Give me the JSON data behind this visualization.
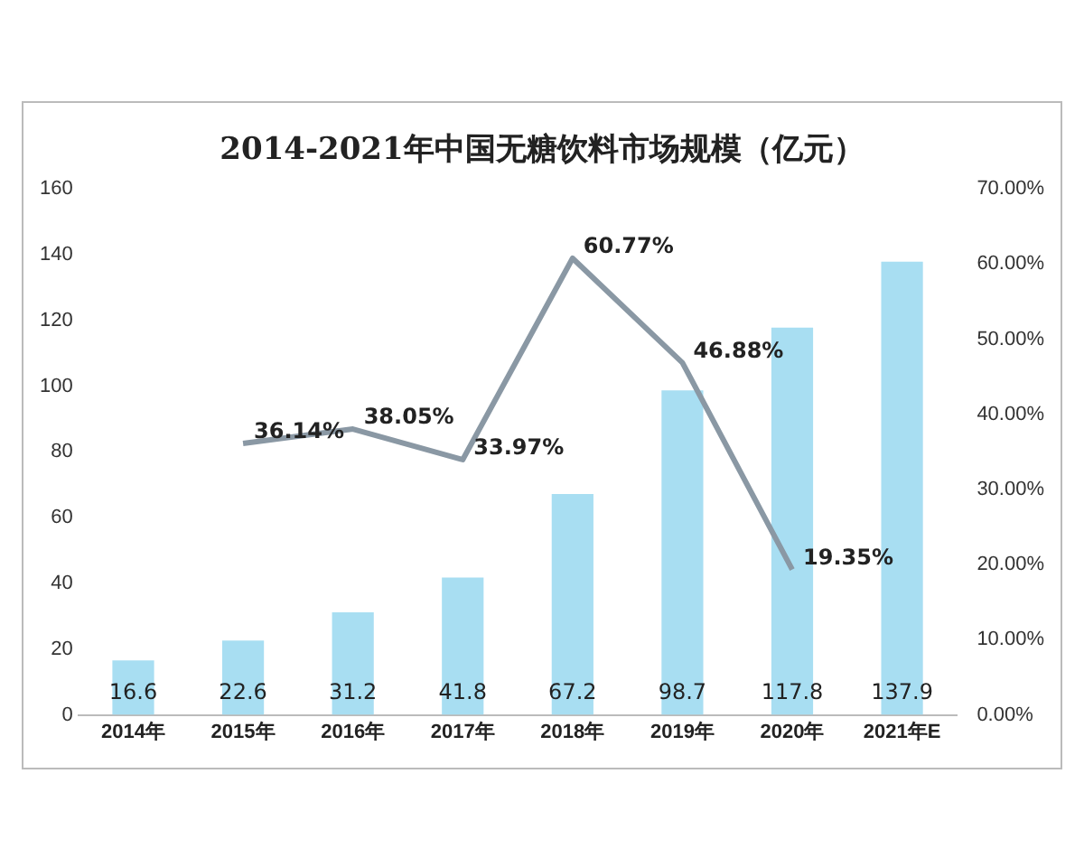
{
  "chart_data": {
    "type": "bar",
    "title": "2014-2021年中国无糖饮料市场规模（亿元）",
    "categories": [
      "2014年",
      "2015年",
      "2016年",
      "2017年",
      "2018年",
      "2019年",
      "2020年",
      "2021年E"
    ],
    "series": [
      {
        "color": "#a8def2",
        "values": [
          16.6,
          22.6,
          31.2,
          41.8,
          67.2,
          98.7,
          117.8,
          137.9
        ],
        "value_labels": [
          "16.6",
          "22.6",
          "31.2",
          "41.8",
          "67.2",
          "98.7",
          "117.8",
          "137.9"
        ]
      },
      {
        "type": "line",
        "axis": "y2",
        "color": "#8a98a4",
        "values": [
          null,
          36.14,
          38.05,
          33.97,
          60.77,
          46.88,
          19.35,
          null
        ],
        "value_labels": [
          null,
          "36.14%",
          "38.05%",
          "33.97%",
          "60.77%",
          "46.88%",
          "19.35%",
          null
        ]
      }
    ],
    "ylim": [
      0,
      160
    ],
    "yticks": [
      0,
      20,
      40,
      60,
      80,
      100,
      120,
      140,
      160
    ],
    "y2lim": [
      0,
      70
    ],
    "y2ticks": [
      {
        "value": 0,
        "label": "0.00%"
      },
      {
        "value": 10,
        "label": "10.00%"
      },
      {
        "value": 20,
        "label": "20.00%"
      },
      {
        "value": 30,
        "label": "30.00%"
      },
      {
        "value": 40,
        "label": "40.00%"
      },
      {
        "value": 50,
        "label": "50.00%"
      },
      {
        "value": 60,
        "label": "60.00%"
      },
      {
        "value": 70,
        "label": "70.00%"
      }
    ],
    "grid": false,
    "legend": false,
    "marker": "none",
    "line_style": "solid"
  }
}
